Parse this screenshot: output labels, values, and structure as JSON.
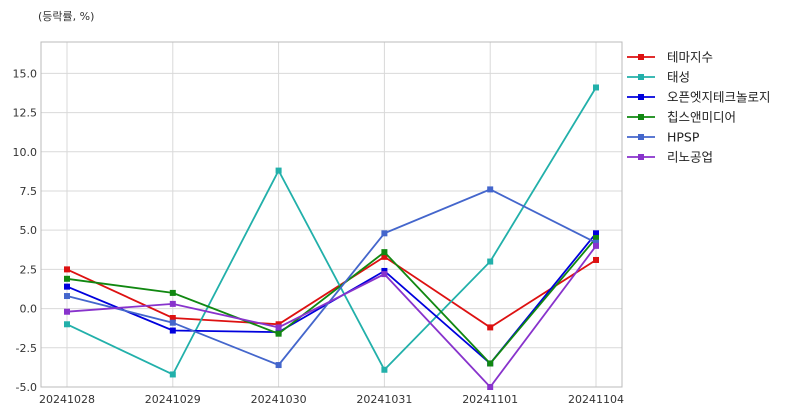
{
  "chart_data": {
    "type": "line",
    "title": "",
    "unit_label": "(등락률, %)",
    "xlabel": "",
    "ylabel": "",
    "categories": [
      "20241028",
      "20241029",
      "20241030",
      "20241031",
      "20241101",
      "20241104"
    ],
    "ylim": [
      -5.0,
      17.0
    ],
    "yticks": [
      "-5.0",
      "-2.5",
      "0.0",
      "2.5",
      "5.0",
      "7.5",
      "10.0",
      "12.5",
      "15.0"
    ],
    "grid": true,
    "legend_position": "right",
    "series": [
      {
        "name": "테마지수",
        "color": "#dd1111",
        "values": [
          2.5,
          -0.6,
          -1.0,
          3.3,
          -1.2,
          3.1
        ]
      },
      {
        "name": "태성",
        "color": "#22b0aa",
        "values": [
          -1.0,
          -4.2,
          8.8,
          -3.9,
          3.0,
          14.1
        ]
      },
      {
        "name": "오픈엣지테크놀로지",
        "color": "#0000dd",
        "values": [
          1.4,
          -1.4,
          -1.5,
          2.4,
          -3.5,
          4.8
        ]
      },
      {
        "name": "칩스앤미디어",
        "color": "#118811",
        "values": [
          1.9,
          1.0,
          -1.6,
          3.6,
          -3.5,
          4.5
        ]
      },
      {
        "name": "HPSP",
        "color": "#4466cc",
        "values": [
          0.8,
          -0.9,
          -3.6,
          4.8,
          7.6,
          4.2
        ]
      },
      {
        "name": "리노공업",
        "color": "#8833cc",
        "values": [
          -0.2,
          0.3,
          -1.2,
          2.2,
          -5.0,
          4.0
        ]
      }
    ]
  }
}
